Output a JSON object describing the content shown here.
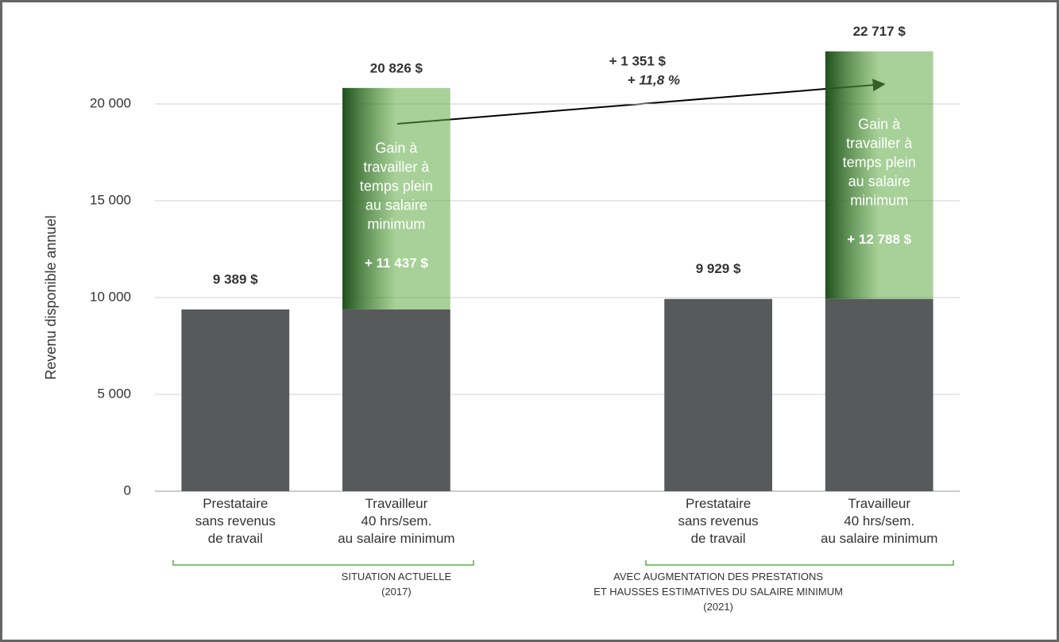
{
  "chart_data": {
    "type": "stacked_bar",
    "y_label": "Revenu disponible annuel",
    "categories": [
      "Prestataire\nsans revenus\nde travail",
      "Travailleur\n40 hrs/sem.\nau salaire minimum",
      null,
      "Prestataire\nsans revenus\nde travail",
      "Travailleur\n40 hrs/sem.\nau salaire minimum"
    ],
    "series": [
      {
        "color": "#58595b",
        "values": [
          9389,
          9389,
          null,
          9929,
          9929
        ],
        "value_labels": [
          "9 389 $",
          null,
          null,
          "9 929 $",
          null
        ]
      },
      {
        "name": "Gain à\ntravailler à\ntemps plein\nau salaire\nminimum",
        "color": "#5fab44",
        "values": [
          null,
          11437,
          null,
          null,
          12788
        ],
        "value_labels": [
          null,
          "+ 11 437 $",
          null,
          null,
          "+ 12 788 $"
        ]
      }
    ],
    "total_labels": [
      null,
      "20 826 $",
      null,
      null,
      "22 717 $"
    ],
    "annotations": [
      "+ 1 351 $",
      "+ 11,8 %"
    ],
    "groups": [
      "SITUATION ACTUELLE\n(2017)",
      "AVEC AUGMENTATION DES PRESTATIONS\nET HAUSSES ESTIMATIVES DU SALAIRE MINIMUM\n(2021)"
    ],
    "ylim": [
      0,
      25000
    ],
    "yticks": [
      0,
      {
        "value": 5000,
        "label": "5 000"
      },
      {
        "value": 10000,
        "label": "10 000"
      },
      {
        "value": 15000,
        "label": "15 000"
      },
      {
        "value": 20000,
        "label": "20 000"
      }
    ],
    "grid": true
  }
}
